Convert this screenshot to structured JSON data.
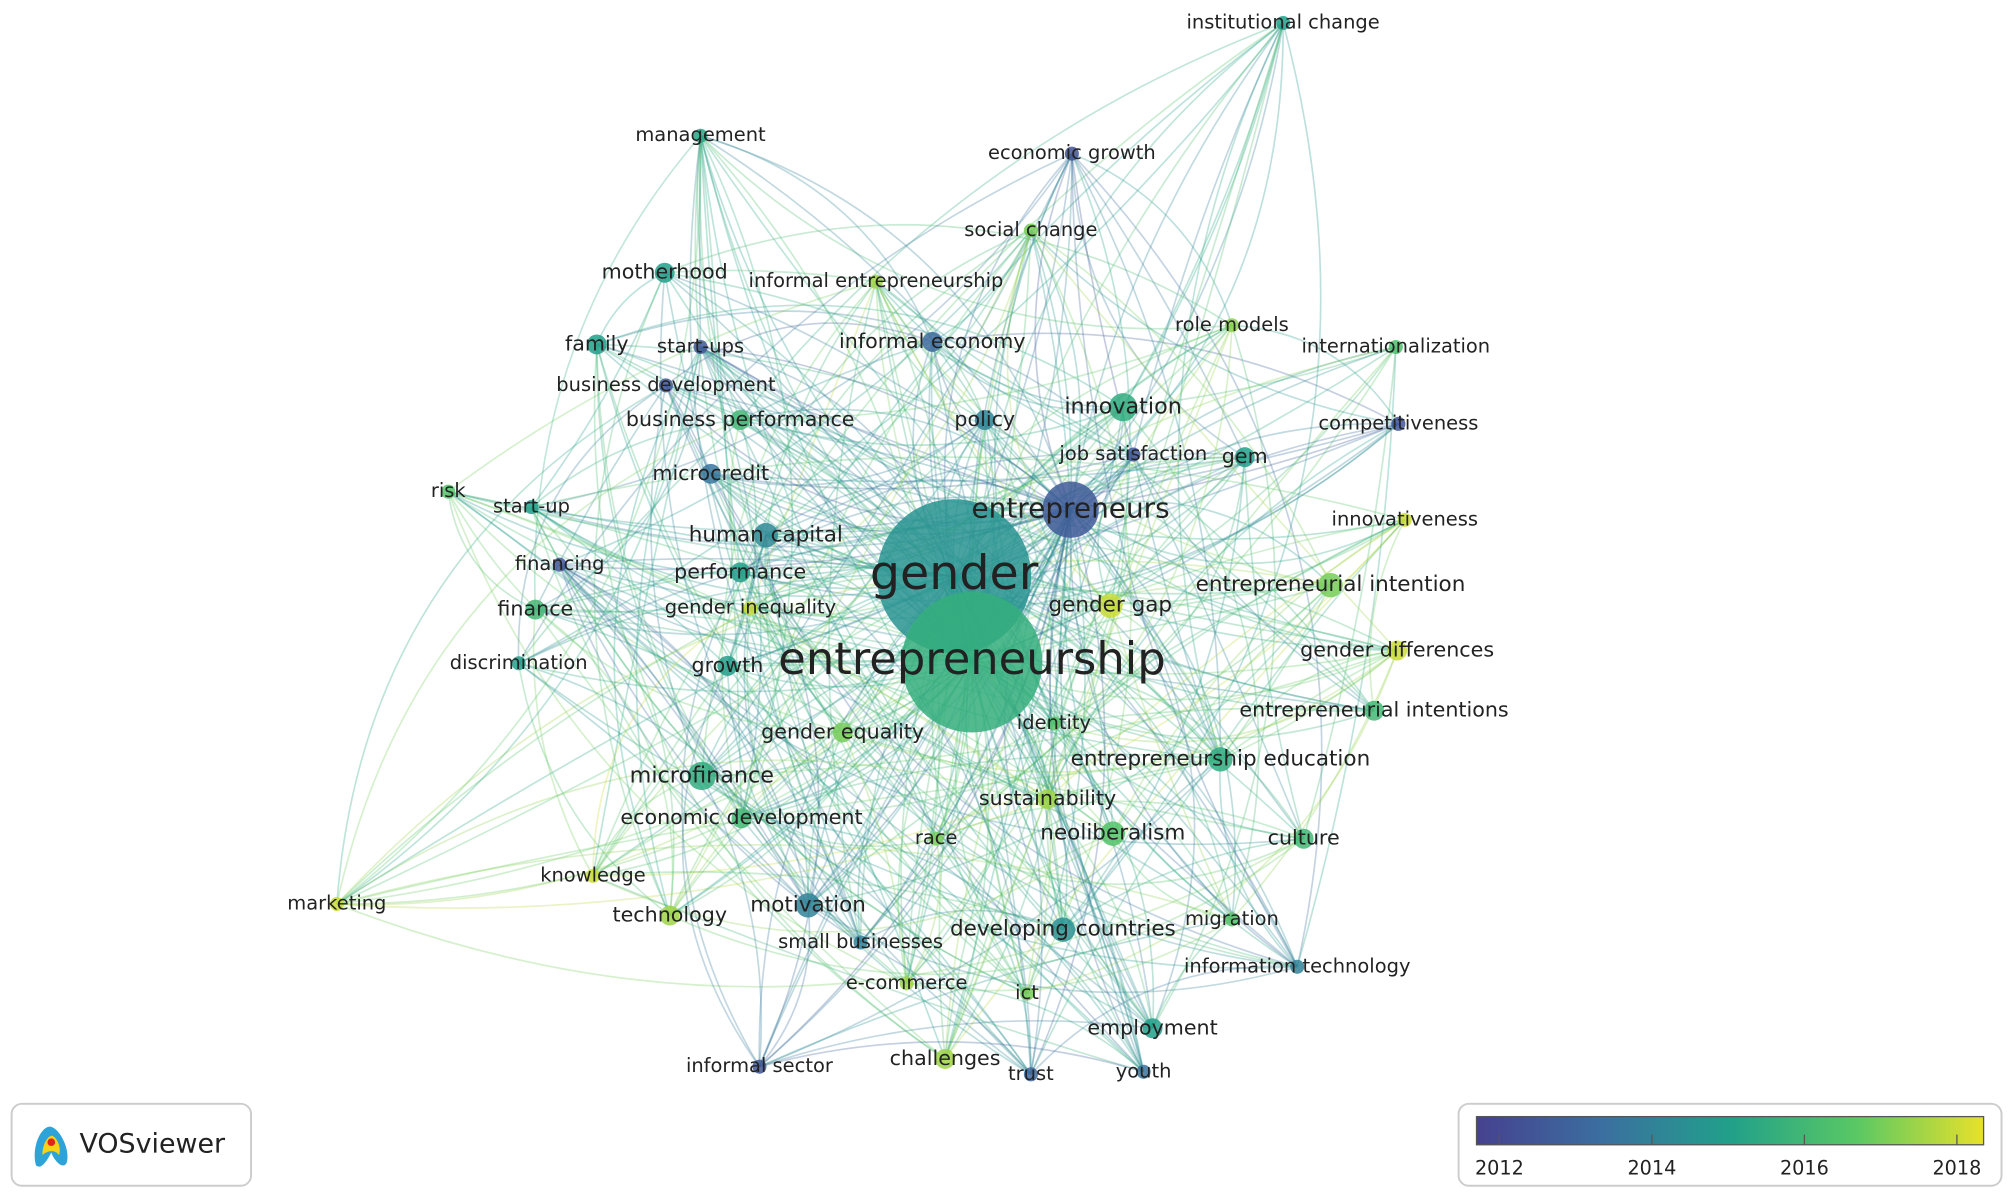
{
  "network": {
    "nodes": [
      {
        "label": "institutional change",
        "year": 2015,
        "occurrences": 1
      },
      {
        "label": "management",
        "year": 2015.2,
        "occurrences": 1
      },
      {
        "label": "economic growth",
        "year": 2012.3,
        "occurrences": 1
      },
      {
        "label": "social change",
        "year": 2017,
        "occurrences": 1
      },
      {
        "label": "informal entrepreneurship",
        "year": 2017.5,
        "occurrences": 1
      },
      {
        "label": "motherhood",
        "year": 2015,
        "occurrences": 2
      },
      {
        "label": "family",
        "year": 2015,
        "occurrences": 2
      },
      {
        "label": "start-ups",
        "year": 2012.5,
        "occurrences": 1
      },
      {
        "label": "informal economy",
        "year": 2013.2,
        "occurrences": 2
      },
      {
        "label": "role models",
        "year": 2017.3,
        "occurrences": 1
      },
      {
        "label": "internationalization",
        "year": 2016.3,
        "occurrences": 1
      },
      {
        "label": "business development",
        "year": 2012.5,
        "occurrences": 1
      },
      {
        "label": "business performance",
        "year": 2016,
        "occurrences": 2
      },
      {
        "label": "policy",
        "year": 2014,
        "occurrences": 2
      },
      {
        "label": "innovation",
        "year": 2015.5,
        "occurrences": 4
      },
      {
        "label": "competitiveness",
        "year": 2012.4,
        "occurrences": 1
      },
      {
        "label": "job satisfaction",
        "year": 2012.5,
        "occurrences": 1
      },
      {
        "label": "gem",
        "year": 2015,
        "occurrences": 2
      },
      {
        "label": "risk",
        "year": 2016.5,
        "occurrences": 1
      },
      {
        "label": "start-up",
        "year": 2015,
        "occurrences": 1
      },
      {
        "label": "microcredit",
        "year": 2013.6,
        "occurrences": 2
      },
      {
        "label": "entrepreneurs",
        "year": 2012.6,
        "occurrences": 16
      },
      {
        "label": "innovativeness",
        "year": 2018,
        "occurrences": 1
      },
      {
        "label": "human capital",
        "year": 2014.2,
        "occurrences": 3
      },
      {
        "label": "financing",
        "year": 2012.5,
        "occurrences": 1
      },
      {
        "label": "performance",
        "year": 2015,
        "occurrences": 2
      },
      {
        "label": "gender",
        "year": 2014.6,
        "occurrences": 120
      },
      {
        "label": "entrepreneurial intention",
        "year": 2017,
        "occurrences": 3
      },
      {
        "label": "gender gap",
        "year": 2018,
        "occurrences": 3
      },
      {
        "label": "finance",
        "year": 2016,
        "occurrences": 2
      },
      {
        "label": "gender inequality",
        "year": 2018,
        "occurrences": 1
      },
      {
        "label": "discrimination",
        "year": 2015,
        "occurrences": 1
      },
      {
        "label": "growth",
        "year": 2015,
        "occurrences": 2
      },
      {
        "label": "entrepreneurship",
        "year": 2015.6,
        "occurrences": 100
      },
      {
        "label": "gender differences",
        "year": 2018,
        "occurrences": 2
      },
      {
        "label": "entrepreneurial intentions",
        "year": 2016,
        "occurrences": 2
      },
      {
        "label": "identity",
        "year": 2016.5,
        "occurrences": 1
      },
      {
        "label": "gender equality",
        "year": 2017,
        "occurrences": 2
      },
      {
        "label": "entrepreneurship education",
        "year": 2015.5,
        "occurrences": 3
      },
      {
        "label": "microfinance",
        "year": 2015.5,
        "occurrences": 4
      },
      {
        "label": "sustainability",
        "year": 2017.5,
        "occurrences": 2
      },
      {
        "label": "economic development",
        "year": 2016,
        "occurrences": 2
      },
      {
        "label": "neoliberalism",
        "year": 2016.5,
        "occurrences": 3
      },
      {
        "label": "culture",
        "year": 2016,
        "occurrences": 2
      },
      {
        "label": "race",
        "year": 2017,
        "occurrences": 1
      },
      {
        "label": "knowledge",
        "year": 2018,
        "occurrences": 1
      },
      {
        "label": "marketing",
        "year": 2018,
        "occurrences": 1
      },
      {
        "label": "technology",
        "year": 2017.5,
        "occurrences": 2
      },
      {
        "label": "motivation",
        "year": 2014,
        "occurrences": 3
      },
      {
        "label": "migration",
        "year": 2016.5,
        "occurrences": 1
      },
      {
        "label": "developing countries",
        "year": 2014.5,
        "occurrences": 3
      },
      {
        "label": "small businesses",
        "year": 2014,
        "occurrences": 1
      },
      {
        "label": "information technology",
        "year": 2014,
        "occurrences": 1
      },
      {
        "label": "e-commerce",
        "year": 2017.5,
        "occurrences": 1
      },
      {
        "label": "ict",
        "year": 2017,
        "occurrences": 1
      },
      {
        "label": "employment",
        "year": 2015,
        "occurrences": 2
      },
      {
        "label": "informal sector",
        "year": 2012.5,
        "occurrences": 1
      },
      {
        "label": "challenges",
        "year": 2017.5,
        "occurrences": 2
      },
      {
        "label": "trust",
        "year": 2013,
        "occurrences": 1
      },
      {
        "label": "youth",
        "year": 2013.5,
        "occurrences": 1
      }
    ],
    "legend": {
      "range": [
        2011.7,
        2018.35
      ],
      "ticks": [
        2012,
        2014,
        2016,
        2018
      ]
    },
    "branding": "VOSviewer"
  }
}
